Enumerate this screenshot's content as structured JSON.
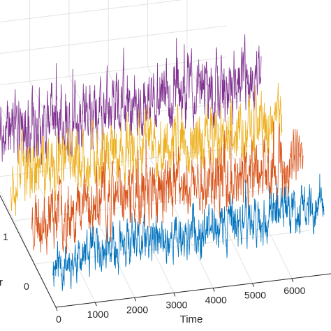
{
  "chart_data": {
    "type": "line",
    "projection": "3d-waterfall",
    "grid": true,
    "xlabel": "Time",
    "ylabel": "r",
    "x_ticks": [
      0,
      1000,
      2000,
      3000,
      4000,
      5000,
      6000
    ],
    "y_ticks": [
      0,
      1
    ],
    "xlim": [
      0,
      7000
    ],
    "series": [
      {
        "color": "#0072BD",
        "start_level": 0.55,
        "end_level": 0.95,
        "noise": 0.28,
        "seed": 11
      },
      {
        "color": "#D95319",
        "start_level": 0.62,
        "end_level": 0.92,
        "noise": 0.38,
        "seed": 23
      },
      {
        "color": "#EDB120",
        "start_level": 0.6,
        "end_level": 0.88,
        "noise": 0.38,
        "seed": 37
      },
      {
        "color": "#7E2F8E",
        "start_level": 0.55,
        "end_level": 0.9,
        "noise": 0.4,
        "seed": 53
      }
    ]
  }
}
